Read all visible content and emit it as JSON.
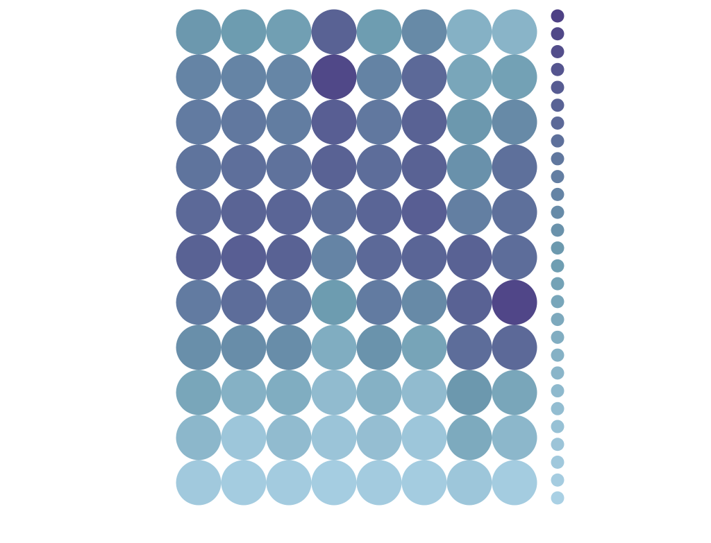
{
  "chart_data": {
    "type": "heatmap",
    "title": "",
    "colors": {
      "low": "#a9d0e4",
      "mid": "#6d9cb0",
      "high": "#4e4185",
      "text": "#e4e4ea"
    },
    "rows": [
      {
        "label": "",
        "values": [
          0.52,
          0.5,
          0.47,
          0.82,
          0.49,
          0.6,
          0.3,
          0.27
        ]
      },
      {
        "label": "",
        "values": [
          0.63,
          0.63,
          0.62,
          0.96,
          0.64,
          0.78,
          0.4,
          0.45
        ]
      },
      {
        "label": "",
        "values": [
          0.68,
          0.7,
          0.67,
          0.84,
          0.7,
          0.82,
          0.52,
          0.6
        ]
      },
      {
        "label": "",
        "values": [
          0.72,
          0.75,
          0.73,
          0.82,
          0.76,
          0.82,
          0.56,
          0.74
        ]
      },
      {
        "label": "",
        "values": [
          0.78,
          0.81,
          0.8,
          0.74,
          0.8,
          0.84,
          0.66,
          0.74
        ]
      },
      {
        "label": "",
        "values": [
          0.82,
          0.84,
          0.82,
          0.63,
          0.78,
          0.8,
          0.82,
          0.76
        ]
      },
      {
        "label": "",
        "values": [
          0.68,
          0.76,
          0.7,
          0.5,
          0.68,
          0.6,
          0.82,
          0.97
        ]
      },
      {
        "label": "",
        "values": [
          0.57,
          0.58,
          0.58,
          0.34,
          0.55,
          0.42,
          0.76,
          0.78
        ]
      },
      {
        "label": "",
        "values": [
          0.4,
          0.3,
          0.34,
          0.2,
          0.3,
          0.2,
          0.52,
          0.4
        ]
      },
      {
        "label": "",
        "values": [
          0.24,
          0.1,
          0.2,
          0.12,
          0.17,
          0.1,
          0.37,
          0.24
        ]
      },
      {
        "label": "",
        "values": [
          0.07,
          0.04,
          0.05,
          0.03,
          0.05,
          0.04,
          0.1,
          0.04
        ]
      }
    ],
    "columns": [
      "",
      "",
      "",
      "",
      "",
      "",
      "",
      ""
    ],
    "colorbar": {
      "steps": 28,
      "tick_labels": [
        "",
        "",
        ""
      ]
    }
  }
}
